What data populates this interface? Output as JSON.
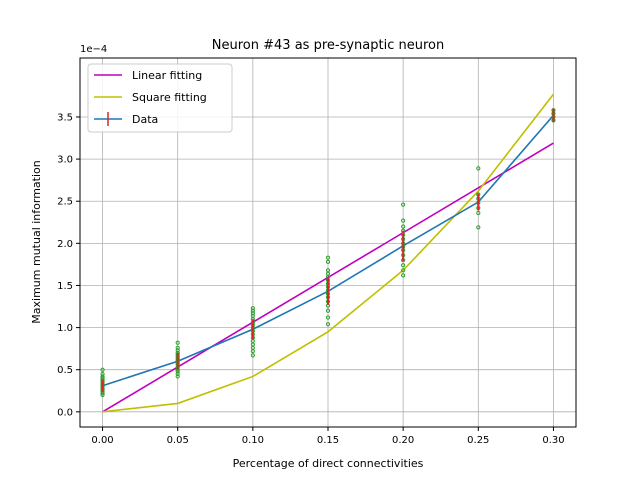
{
  "chart_data": {
    "type": "line",
    "title": "Neuron #43 as pre-synaptic neuron",
    "xlabel": "Percentage of direct connectivities",
    "ylabel": "Maximum mutual information",
    "y_scale_label": "1e−4",
    "xlim": [
      -0.015,
      0.315
    ],
    "ylim": [
      -0.18,
      4.2
    ],
    "x_ticks": [
      0.0,
      0.05,
      0.1,
      0.15,
      0.2,
      0.25,
      0.3
    ],
    "x_tick_labels": [
      "0.00",
      "0.05",
      "0.10",
      "0.15",
      "0.20",
      "0.25",
      "0.30"
    ],
    "y_ticks": [
      0.0,
      0.5,
      1.0,
      1.5,
      2.0,
      2.5,
      3.0,
      3.5
    ],
    "y_tick_labels": [
      "0.0",
      "0.5",
      "1.0",
      "1.5",
      "2.0",
      "2.5",
      "3.0",
      "3.5"
    ],
    "grid": true,
    "legend_position": "top-left",
    "series": [
      {
        "name": "Linear fitting",
        "color": "#bf00bf",
        "x": [
          0.0,
          0.3
        ],
        "y": [
          0.0,
          3.19
        ]
      },
      {
        "name": "Square fitting",
        "color": "#bfbf00",
        "x": [
          0.0,
          0.05,
          0.1,
          0.15,
          0.2,
          0.25,
          0.3
        ],
        "y": [
          0.0,
          0.1,
          0.42,
          0.95,
          1.68,
          2.62,
          3.77
        ]
      },
      {
        "name": "Data",
        "color": "#1f77b4",
        "x": [
          0.0,
          0.05,
          0.1,
          0.15,
          0.2,
          0.25,
          0.3
        ],
        "y": [
          0.31,
          0.6,
          0.98,
          1.43,
          1.97,
          2.49,
          3.52
        ],
        "errorbar_color": "#d62728",
        "yerr": [
          0.07,
          0.1,
          0.12,
          0.16,
          0.18,
          0.1,
          0.08
        ]
      }
    ],
    "scatter": {
      "color": "#2ca02c",
      "points": [
        {
          "x": 0.0,
          "y": [
            0.2,
            0.22,
            0.24,
            0.26,
            0.28,
            0.3,
            0.32,
            0.34,
            0.36,
            0.38,
            0.4,
            0.42,
            0.45,
            0.5
          ]
        },
        {
          "x": 0.05,
          "y": [
            0.42,
            0.45,
            0.48,
            0.5,
            0.53,
            0.56,
            0.58,
            0.6,
            0.62,
            0.64,
            0.66,
            0.68,
            0.7,
            0.73,
            0.76,
            0.82
          ]
        },
        {
          "x": 0.1,
          "y": [
            0.67,
            0.72,
            0.76,
            0.8,
            0.84,
            0.88,
            0.92,
            0.96,
            1.0,
            1.03,
            1.06,
            1.1,
            1.14,
            1.17,
            1.2,
            1.23
          ]
        },
        {
          "x": 0.15,
          "y": [
            1.04,
            1.12,
            1.2,
            1.26,
            1.31,
            1.36,
            1.4,
            1.44,
            1.48,
            1.52,
            1.56,
            1.6,
            1.64,
            1.68,
            1.78,
            1.83
          ]
        },
        {
          "x": 0.2,
          "y": [
            1.62,
            1.68,
            1.74,
            1.8,
            1.86,
            1.92,
            1.96,
            2.0,
            2.05,
            2.1,
            2.15,
            2.2,
            2.27,
            2.46
          ]
        },
        {
          "x": 0.25,
          "y": [
            2.19,
            2.36,
            2.42,
            2.48,
            2.53,
            2.58,
            2.89
          ]
        },
        {
          "x": 0.3,
          "y": [
            3.46,
            3.5,
            3.54,
            3.58
          ]
        }
      ]
    }
  }
}
